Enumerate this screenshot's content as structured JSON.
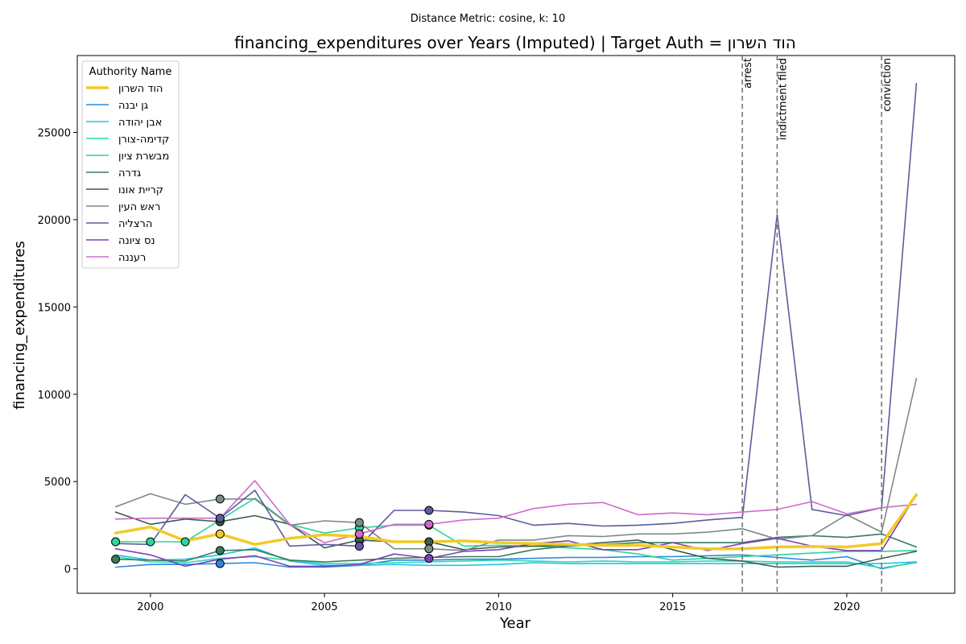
{
  "chart_data": {
    "type": "line",
    "suptitle": "Distance Metric: cosine, k: 10",
    "title": "financing_expenditures over Years (Imputed) | Target Auth = הוד השרון",
    "xlabel": "Year",
    "ylabel": "financing_expenditures",
    "xlim": [
      1997.9,
      2023.1
    ],
    "ylim": [
      -1400,
      29400
    ],
    "xticks": [
      2000,
      2005,
      2010,
      2015,
      2020
    ],
    "yticks": [
      0,
      5000,
      10000,
      15000,
      20000,
      25000
    ],
    "legend": {
      "title": "Authority Name",
      "placement": "top-left"
    },
    "x": [
      1999,
      2000,
      2001,
      2002,
      2003,
      2004,
      2005,
      2006,
      2007,
      2008,
      2009,
      2010,
      2011,
      2012,
      2013,
      2014,
      2015,
      2016,
      2017,
      2018,
      2019,
      2020,
      2021,
      2022
    ],
    "series": [
      {
        "name": "הוד השרון",
        "color": "#f2ca27",
        "target": true,
        "values": [
          2050,
          2400,
          1600,
          2000,
          1400,
          1750,
          1950,
          1850,
          1550,
          1550,
          1600,
          1500,
          1450,
          1400,
          1350,
          1350,
          1250,
          1150,
          1150,
          1250,
          1280,
          1250,
          1450,
          4250
        ],
        "imputed_years": [
          2002
        ]
      },
      {
        "name": "גן יבנה",
        "color": "#2a88d8",
        "values": [
          100,
          250,
          250,
          300,
          350,
          100,
          100,
          200,
          500,
          500,
          550,
          550,
          600,
          650,
          650,
          700,
          700,
          750,
          800,
          650,
          500,
          700,
          0,
          400
        ],
        "imputed_years": [
          2002
        ]
      },
      {
        "name": "אבן יהודה",
        "color": "#1fc3e8",
        "values": [
          800,
          500,
          550,
          800,
          1200,
          450,
          200,
          200,
          250,
          200,
          200,
          250,
          350,
          300,
          300,
          300,
          300,
          300,
          300,
          300,
          300,
          300,
          300,
          400
        ],
        "imputed_years": []
      },
      {
        "name": "קדימה-צורן",
        "color": "#2fd6b2",
        "values": [
          700,
          400,
          350,
          600,
          700,
          500,
          300,
          300,
          350,
          400,
          450,
          500,
          450,
          400,
          450,
          400,
          400,
          450,
          450,
          400,
          400,
          400,
          50,
          350
        ],
        "imputed_years": []
      },
      {
        "name": "מבשרת ציון",
        "color": "#2ed39a",
        "values": [
          1550,
          1550,
          1550,
          2800,
          4050,
          2550,
          2050,
          2350,
          2500,
          2500,
          1300,
          1350,
          1300,
          1200,
          1100,
          850,
          500,
          600,
          700,
          800,
          900,
          1000,
          1000,
          1050
        ],
        "imputed_years": [
          1999,
          2000,
          2001,
          2002,
          2006,
          2008
        ]
      },
      {
        "name": "גדרה",
        "color": "#3b7a5f",
        "values": [
          550,
          500,
          450,
          1050,
          1100,
          500,
          400,
          500,
          600,
          650,
          700,
          700,
          1100,
          1300,
          1400,
          1500,
          1500,
          1500,
          1500,
          1800,
          1900,
          1800,
          2000,
          1250
        ],
        "imputed_years": [
          1999,
          2002
        ]
      },
      {
        "name": "קריית אונו",
        "color": "#3a5e4a",
        "values": [
          3250,
          2550,
          2850,
          2700,
          3050,
          2550,
          1200,
          1650,
          1550,
          1550,
          1100,
          1250,
          1300,
          1350,
          1500,
          1650,
          1100,
          600,
          450,
          100,
          150,
          150,
          600,
          1000
        ],
        "imputed_years": [
          2002,
          2006,
          2008
        ]
      },
      {
        "name": "ראש העין",
        "color": "#7d8a87",
        "values": [
          3550,
          4300,
          3700,
          4000,
          4000,
          2500,
          2750,
          2650,
          1150,
          1150,
          1050,
          1650,
          1650,
          1900,
          1850,
          2000,
          2000,
          2100,
          2300,
          1700,
          1900,
          3100,
          2100,
          10900
        ],
        "imputed_years": [
          2002,
          2006,
          2008
        ]
      },
      {
        "name": "הרצליה",
        "color": "#5c5c9c",
        "values": [
          1450,
          1400,
          4250,
          2900,
          4500,
          1300,
          1400,
          1300,
          3350,
          3350,
          3250,
          3050,
          2500,
          2600,
          2450,
          2500,
          2600,
          2800,
          2950,
          20300,
          3400,
          3050,
          3500,
          27800
        ],
        "imputed_years": [
          2002,
          2006,
          2008
        ]
      },
      {
        "name": "נס ציונה",
        "color": "#7a42b8",
        "values": [
          1150,
          800,
          150,
          550,
          750,
          150,
          150,
          250,
          850,
          600,
          1000,
          1100,
          1450,
          1600,
          1100,
          1100,
          1500,
          1050,
          1450,
          1750,
          1300,
          1050,
          1050,
          4250
        ],
        "imputed_years": [
          2008
        ]
      },
      {
        "name": "רעננה",
        "color": "#cc6ccc",
        "values": [
          2850,
          2900,
          2900,
          2900,
          5050,
          2550,
          1500,
          2000,
          2550,
          2550,
          2800,
          2900,
          3450,
          3700,
          3800,
          3100,
          3200,
          3100,
          3250,
          3400,
          3850,
          3150,
          3500,
          3700
        ],
        "imputed_years": [
          2006,
          2008
        ]
      }
    ],
    "events": [
      {
        "year": 2017,
        "label": "arrest"
      },
      {
        "year": 2018,
        "label": "indictment filed"
      },
      {
        "year": 2021,
        "label": "conviction"
      }
    ]
  }
}
